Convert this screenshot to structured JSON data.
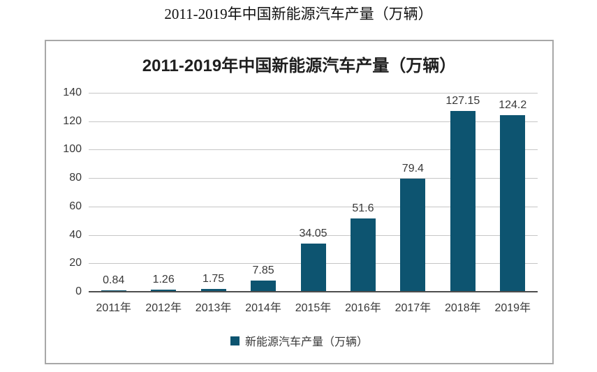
{
  "page": {
    "title": "2011-2019年中国新能源汽车产量（万辆）"
  },
  "chart_data": {
    "type": "bar",
    "title": "2011-2019年中国新能源汽车产量（万辆）",
    "categories": [
      "2011年",
      "2012年",
      "2013年",
      "2014年",
      "2015年",
      "2016年",
      "2017年",
      "2018年",
      "2019年"
    ],
    "values": [
      0.84,
      1.26,
      1.75,
      7.85,
      34.05,
      51.6,
      79.4,
      127.15,
      124.2
    ],
    "value_labels": [
      "0.84",
      "1.26",
      "1.75",
      "7.85",
      "34.05",
      "51.6",
      "79.4",
      "127.15",
      "124.2"
    ],
    "series_name": "新能源汽车产量（万辆）",
    "legend": [
      "新能源汽车产量（万辆）"
    ],
    "legend_position": "bottom",
    "xlabel": "",
    "ylabel": "",
    "ylim": [
      0,
      140
    ],
    "yticks": [
      0,
      20,
      40,
      60,
      80,
      100,
      120,
      140
    ],
    "grid": "horizontal",
    "colors": {
      "bar": "#0d5470",
      "gridline": "#c6c6c6",
      "axis_line": "#4d4d4d",
      "box_border": "#a8a8a8",
      "text": "#383838",
      "title_text": "#1f1f1f"
    }
  }
}
